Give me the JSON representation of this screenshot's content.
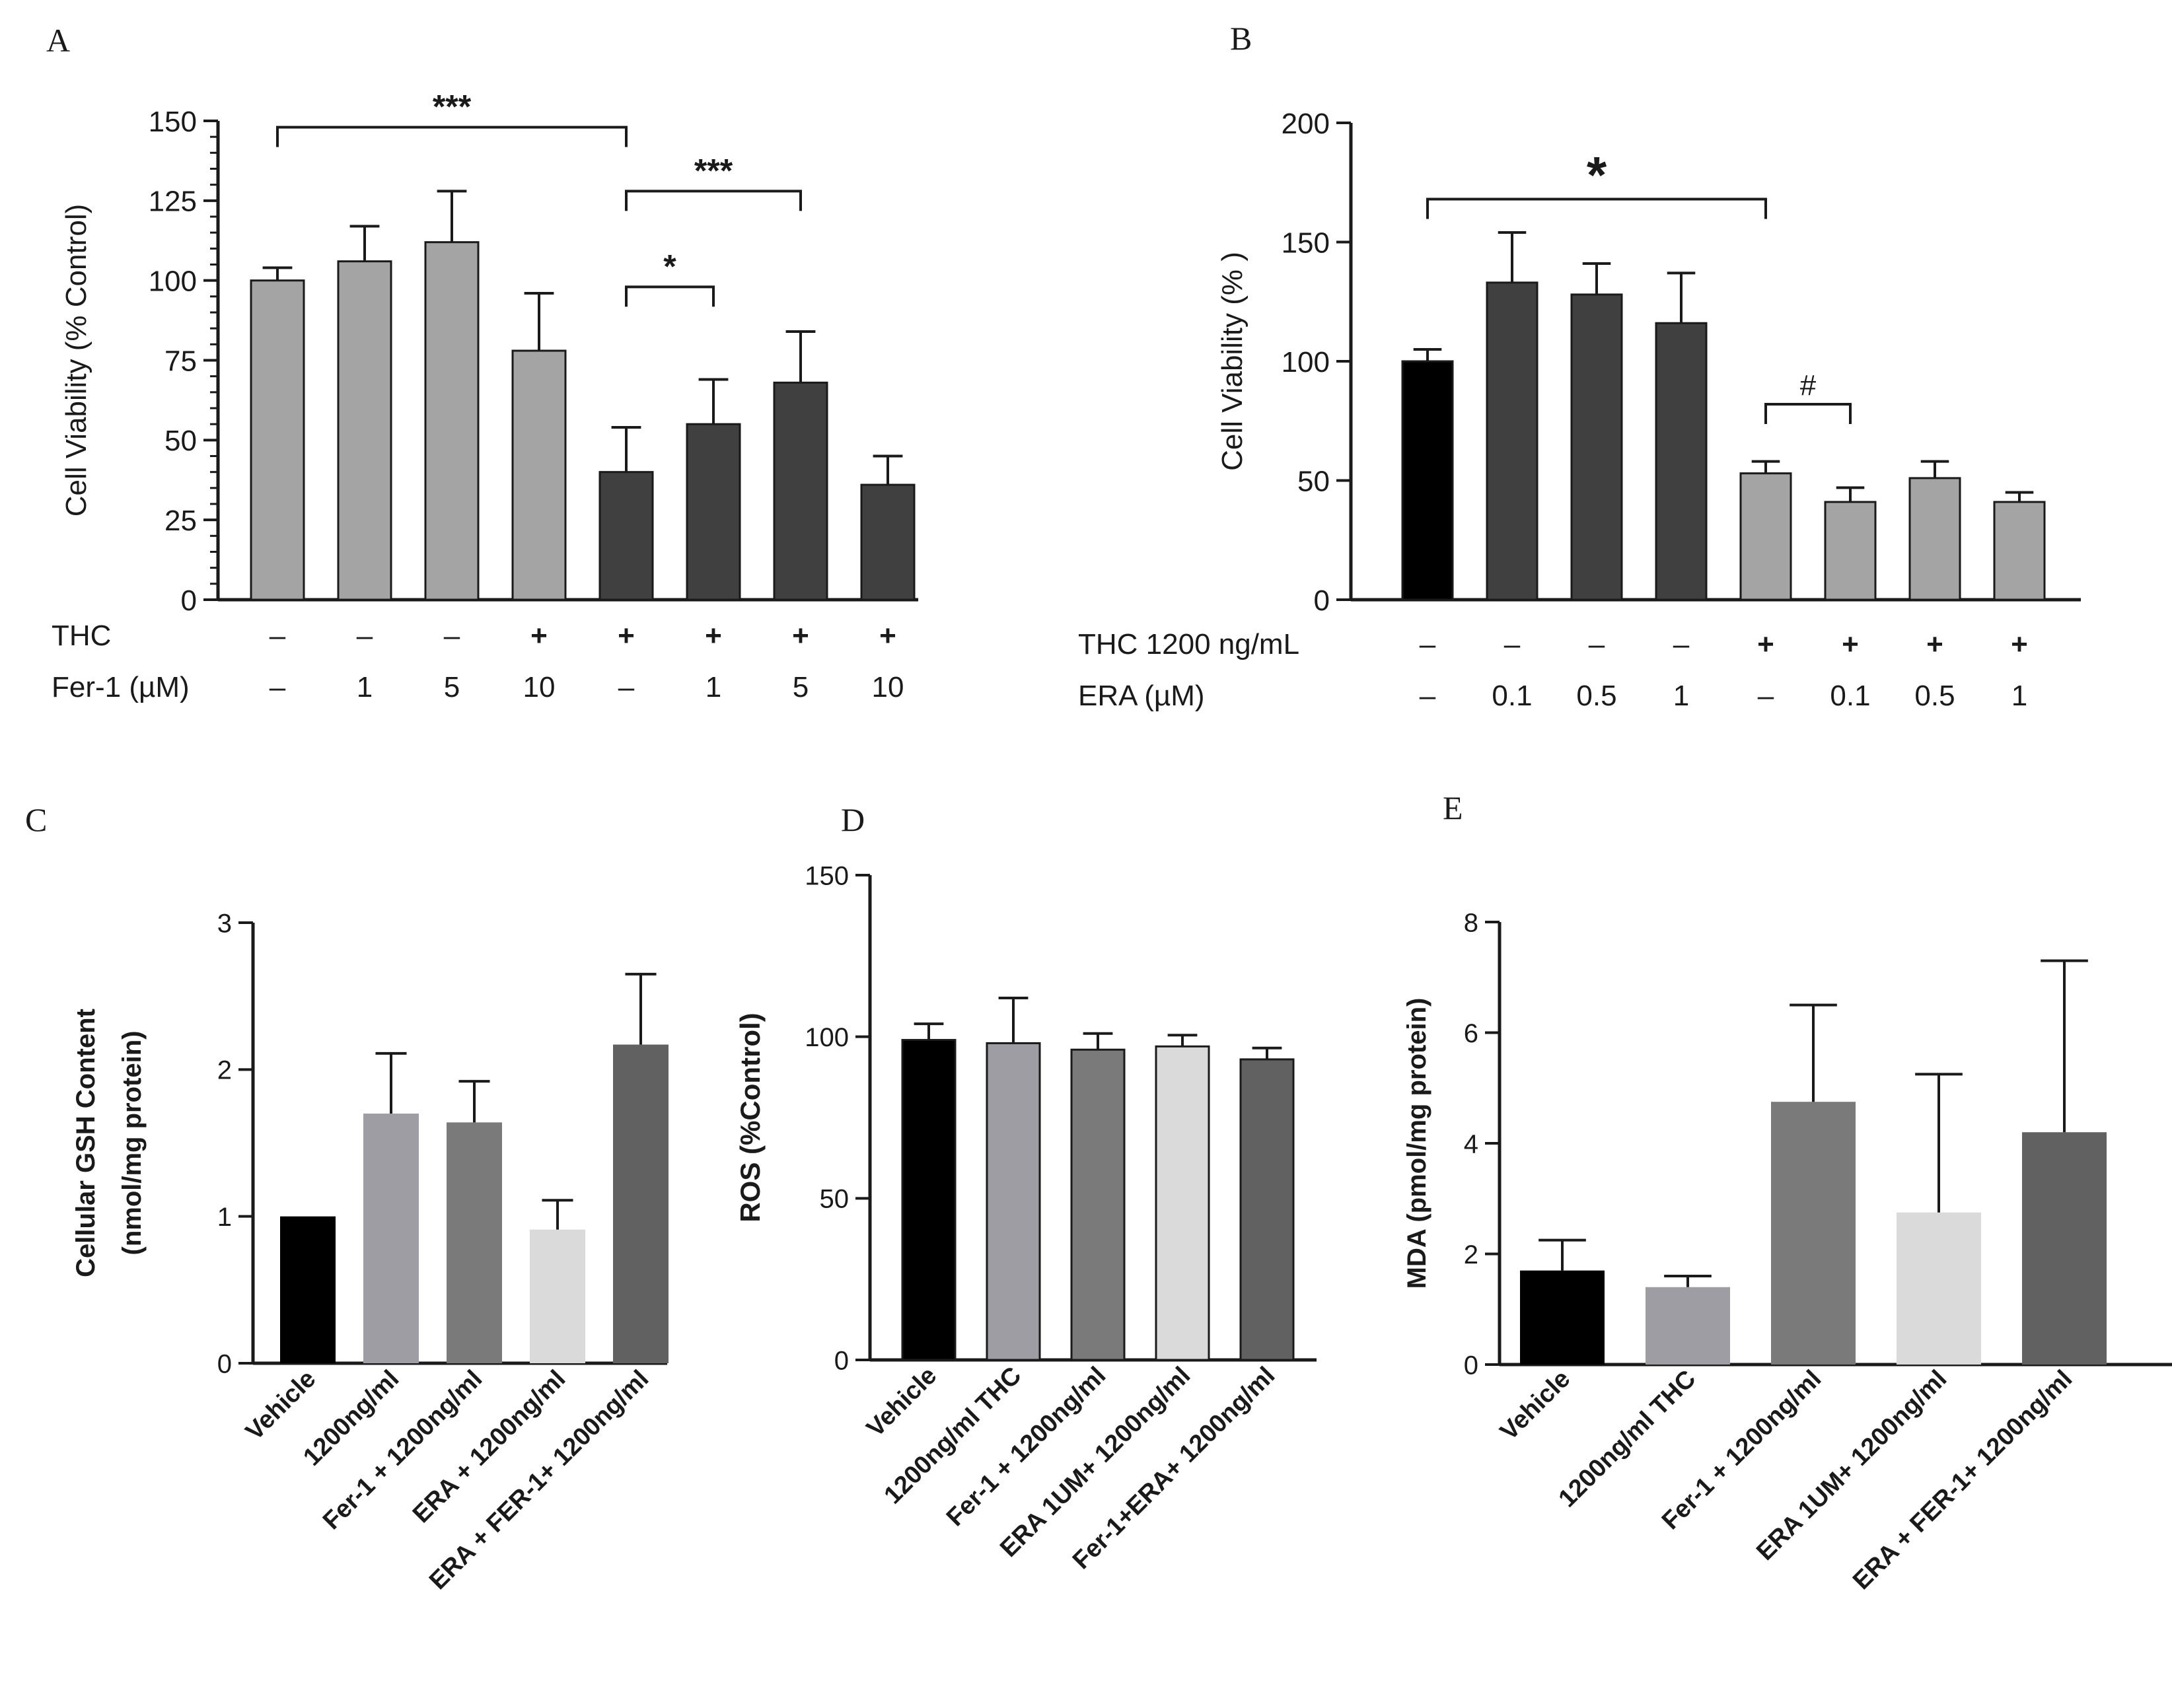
{
  "chart_data": [
    {
      "panel": "A",
      "type": "bar",
      "ylabel": "Cell Viability (% Control)",
      "ylim": [
        0,
        150
      ],
      "yticks": [
        0,
        25,
        50,
        75,
        100,
        125,
        150
      ],
      "minor_ticks": true,
      "values": [
        100,
        106,
        112,
        78,
        40,
        55,
        68,
        36
      ],
      "errors": [
        4,
        11,
        16,
        18,
        14,
        14,
        16,
        9
      ],
      "colors": [
        "#a4a4a4",
        "#a4a4a4",
        "#a4a4a4",
        "#a4a4a4",
        "#404040",
        "#404040",
        "#404040",
        "#404040"
      ],
      "treatment_rows": [
        {
          "label": "THC",
          "values": [
            "–",
            "–",
            "–",
            "+",
            "+",
            "+",
            "+",
            "+"
          ]
        },
        {
          "label": "Fer-1 (µM)",
          "values": [
            "–",
            "1",
            "5",
            "10",
            "–",
            "1",
            "5",
            "10"
          ]
        }
      ],
      "annotations": [
        {
          "from": 0,
          "to": 4,
          "label": "***",
          "level": 148
        },
        {
          "from": 4,
          "to": 6,
          "label": "***",
          "level": 128
        },
        {
          "from": 4,
          "to": 5,
          "label": "*",
          "level": 98
        }
      ]
    },
    {
      "panel": "B",
      "type": "bar",
      "ylabel": "Cell Viability (% )",
      "ylim": [
        0,
        200
      ],
      "yticks": [
        0,
        50,
        100,
        150,
        200
      ],
      "minor_ticks": false,
      "values": [
        100,
        133,
        128,
        116,
        53,
        41,
        51,
        41
      ],
      "errors": [
        5,
        21,
        13,
        21,
        5,
        6,
        7,
        4
      ],
      "colors": [
        "#000000",
        "#404040",
        "#404040",
        "#404040",
        "#a4a4a4",
        "#a4a4a4",
        "#a4a4a4",
        "#a4a4a4"
      ],
      "treatment_rows": [
        {
          "label": "THC 1200 ng/mL",
          "values": [
            "–",
            "–",
            "–",
            "–",
            "+",
            "+",
            "+",
            "+"
          ]
        },
        {
          "label": "ERA (µM)",
          "values": [
            "–",
            "0.1",
            "0.5",
            "1",
            "–",
            "0.1",
            "0.5",
            "1"
          ]
        }
      ],
      "annotations": [
        {
          "from": 0,
          "to": 4,
          "label": "*",
          "level": 168
        },
        {
          "from": 4,
          "to": 5,
          "label": "#",
          "level": 82
        }
      ]
    },
    {
      "panel": "C",
      "type": "bar",
      "ylabel": "Cellular GSH Content",
      "ylabel2": "(nmol/mg protein)",
      "ylim": [
        0,
        3
      ],
      "yticks": [
        0,
        1,
        2,
        3
      ],
      "categories": [
        "Vehicle",
        "1200ng/ml",
        "Fer-1 + 1200ng/ml",
        "ERA + 1200ng/ml",
        "ERA + FER-1+ 1200ng/ml"
      ],
      "values": [
        1.0,
        1.7,
        1.64,
        0.91,
        2.17
      ],
      "errors": [
        0,
        0.41,
        0.28,
        0.2,
        0.48
      ],
      "colors": [
        "#000000",
        "#9d9da3",
        "#7a7a7a",
        "#dadada",
        "#616161"
      ]
    },
    {
      "panel": "D",
      "type": "bar",
      "ylabel": "ROS (%Control)",
      "ylim": [
        0,
        150
      ],
      "yticks": [
        0,
        50,
        100,
        150
      ],
      "categories": [
        "Vehicle",
        "1200ng/ml THC",
        "Fer-1 + 1200ng/ml",
        "ERA 1UM+ 1200ng/ml",
        "Fer-1+ERA+ 1200ng/ml"
      ],
      "values": [
        99,
        98,
        96,
        97,
        93
      ],
      "errors": [
        5,
        14,
        5,
        3.5,
        3.5
      ],
      "colors": [
        "#000000",
        "#9d9da3",
        "#7a7a7a",
        "#dadada",
        "#616161"
      ]
    },
    {
      "panel": "E",
      "type": "bar",
      "ylabel": "MDA (pmol/mg protein)",
      "ylim": [
        0,
        8
      ],
      "yticks": [
        0,
        2,
        4,
        6,
        8
      ],
      "categories": [
        "Vehicle",
        "1200ng/ml THC",
        "Fer-1 + 1200ng/ml",
        "ERA 1UM+ 1200ng/ml",
        "ERA + FER-1+ 1200ng/ml"
      ],
      "values": [
        1.7,
        1.4,
        4.75,
        2.75,
        4.2
      ],
      "errors": [
        0.55,
        0.2,
        1.75,
        2.5,
        3.1
      ],
      "colors": [
        "#000000",
        "#9d9da3",
        "#7a7a7a",
        "#dadada",
        "#616161"
      ]
    }
  ]
}
